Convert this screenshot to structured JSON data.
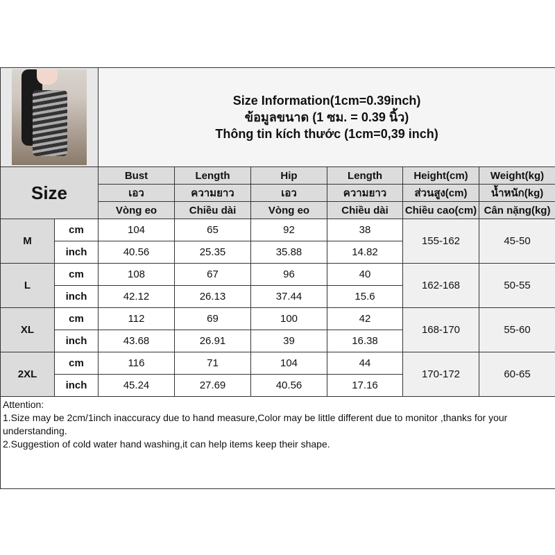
{
  "title": {
    "line1": "Size Information(1cm=0.39inch)",
    "line2": "ข้อมูลขนาด (1 ซม. = 0.39 นิ้ว)",
    "line3": "Thông tin kích thước (1cm=0,39 inch)"
  },
  "size_label": "Size",
  "headers": [
    [
      "Bust",
      "Length",
      "Hip",
      "Length",
      "Height(cm)",
      "Weight(kg)"
    ],
    [
      "เอว",
      "ความยาว",
      "เอว",
      "ความยาว",
      "ส่วนสูง(cm)",
      "น้ำหนัก(kg)"
    ],
    [
      "Vòng eo",
      "Chiều dài",
      "Vòng eo",
      "Chiều dài",
      "Chiều cao(cm)",
      "Cân nặng(kg)"
    ]
  ],
  "rows": [
    {
      "size": "M",
      "cm": [
        "104",
        "65",
        "92",
        "38"
      ],
      "inch": [
        "40.56",
        "25.35",
        "35.88",
        "14.82"
      ],
      "height": "155-162",
      "weight": "45-50"
    },
    {
      "size": "L",
      "cm": [
        "108",
        "67",
        "96",
        "40"
      ],
      "inch": [
        "42.12",
        "26.13",
        "37.44",
        "15.6"
      ],
      "height": "162-168",
      "weight": "50-55"
    },
    {
      "size": "XL",
      "cm": [
        "112",
        "69",
        "100",
        "42"
      ],
      "inch": [
        "43.68",
        "26.91",
        "39",
        "16.38"
      ],
      "height": "168-170",
      "weight": "55-60"
    },
    {
      "size": "2XL",
      "cm": [
        "116",
        "71",
        "104",
        "44"
      ],
      "inch": [
        "45.24",
        "27.69",
        "40.56",
        "17.16"
      ],
      "height": "170-172",
      "weight": "60-65"
    }
  ],
  "unit_cm": "cm",
  "unit_inch": "inch",
  "attention": {
    "heading": "Attention:",
    "line1": "1.Size may be 2cm/1inch inaccuracy due to hand measure,Color may be little different due to monitor ,thanks for your understanding.",
    "line2": "2.Suggestion of cold water hand washing,it can help items keep their shape."
  }
}
